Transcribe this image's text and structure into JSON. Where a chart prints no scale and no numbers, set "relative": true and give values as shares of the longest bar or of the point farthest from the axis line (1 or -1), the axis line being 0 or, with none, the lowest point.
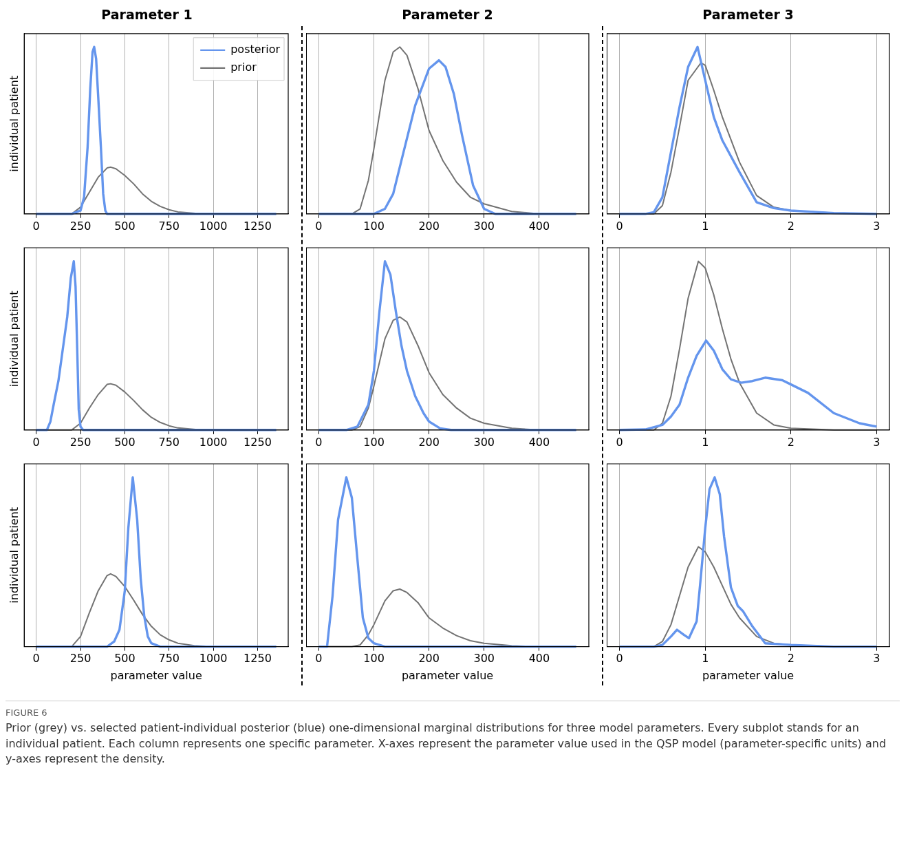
{
  "chart_data": [
    {
      "type": "line",
      "title": "Parameter 1",
      "ylabel": "individual patient",
      "relative": true,
      "xlim": [
        -68,
        1423
      ],
      "xticks": [
        0,
        250,
        500,
        750,
        1000,
        1250
      ],
      "grid": "x",
      "legend": "top right",
      "series": [
        {
          "name": "posterior",
          "color": "#6495ed",
          "x": [
            0,
            200,
            250,
            270,
            290,
            305,
            318,
            327,
            338,
            350,
            365,
            378,
            390,
            400,
            1355
          ],
          "values": [
            0,
            0,
            0.02,
            0.1,
            0.4,
            0.75,
            0.97,
            1,
            0.93,
            0.7,
            0.4,
            0.12,
            0.02,
            0,
            0
          ]
        },
        {
          "name": "prior",
          "color": "#737373",
          "x": [
            0,
            200,
            250,
            300,
            350,
            400,
            420,
            450,
            500,
            550,
            600,
            650,
            700,
            750,
            800,
            900,
            1000,
            1355
          ],
          "values": [
            0,
            0,
            0.04,
            0.13,
            0.22,
            0.275,
            0.28,
            0.27,
            0.23,
            0.18,
            0.12,
            0.075,
            0.045,
            0.025,
            0.012,
            0.003,
            0,
            0
          ]
        }
      ]
    },
    {
      "type": "line",
      "title": "Parameter 2",
      "relative": true,
      "xlim": [
        -23,
        490
      ],
      "xticks": [
        0,
        100,
        200,
        300,
        400
      ],
      "grid": "x",
      "series": [
        {
          "color": "#6495ed",
          "x": [
            0,
            100,
            120,
            135,
            150,
            175,
            200,
            218,
            230,
            245,
            260,
            280,
            300,
            320,
            467
          ],
          "values": [
            0,
            0,
            0.03,
            0.12,
            0.32,
            0.65,
            0.87,
            0.92,
            0.88,
            0.72,
            0.47,
            0.17,
            0.03,
            0,
            0
          ]
        },
        {
          "color": "#737373",
          "x": [
            0,
            60,
            75,
            90,
            100,
            120,
            135,
            147,
            160,
            180,
            200,
            225,
            250,
            275,
            300,
            350,
            400,
            467
          ],
          "values": [
            0,
            0,
            0.03,
            0.2,
            0.39,
            0.8,
            0.97,
            1,
            0.95,
            0.75,
            0.5,
            0.32,
            0.19,
            0.1,
            0.06,
            0.015,
            0,
            0
          ]
        }
      ]
    },
    {
      "type": "line",
      "title": "Parameter 3",
      "relative": true,
      "xlim": [
        -0.15,
        3.15
      ],
      "xticks": [
        0,
        1,
        2,
        3
      ],
      "grid": "x",
      "series": [
        {
          "color": "#6495ed",
          "x": [
            0,
            0.3,
            0.4,
            0.5,
            0.6,
            0.7,
            0.8,
            0.91,
            1.0,
            1.1,
            1.2,
            1.4,
            1.6,
            1.8,
            2.0,
            2.5,
            3.0
          ],
          "values": [
            0,
            0,
            0.01,
            0.1,
            0.37,
            0.64,
            0.88,
            1,
            0.8,
            0.58,
            0.44,
            0.25,
            0.07,
            0.035,
            0.02,
            0.005,
            0
          ]
        },
        {
          "color": "#737373",
          "x": [
            0,
            0.4,
            0.5,
            0.6,
            0.7,
            0.8,
            0.95,
            1.0,
            1.1,
            1.2,
            1.4,
            1.6,
            1.8,
            2.0,
            2.5,
            3.0
          ],
          "values": [
            0,
            0,
            0.05,
            0.25,
            0.52,
            0.8,
            0.905,
            0.89,
            0.74,
            0.58,
            0.31,
            0.11,
            0.04,
            0.02,
            0.005,
            0
          ]
        }
      ]
    },
    {
      "type": "line",
      "ylabel": "individual patient",
      "relative": true,
      "xlim": [
        -68,
        1423
      ],
      "xticks": [
        0,
        250,
        500,
        750,
        1000,
        1250
      ],
      "grid": "x",
      "series": [
        {
          "color": "#6495ed",
          "x": [
            0,
            60,
            80,
            100,
            125,
            150,
            175,
            195,
            212,
            222,
            232,
            240,
            250,
            265,
            1355
          ],
          "values": [
            0,
            0,
            0.05,
            0.16,
            0.29,
            0.48,
            0.67,
            0.9,
            1,
            0.85,
            0.45,
            0.12,
            0.02,
            0,
            0
          ]
        },
        {
          "color": "#737373",
          "x": [
            0,
            200,
            250,
            300,
            350,
            400,
            420,
            450,
            500,
            550,
            600,
            650,
            700,
            750,
            800,
            900,
            1000,
            1355
          ],
          "values": [
            0,
            0,
            0.04,
            0.13,
            0.21,
            0.27,
            0.274,
            0.265,
            0.225,
            0.175,
            0.12,
            0.075,
            0.045,
            0.025,
            0.012,
            0.003,
            0,
            0
          ]
        }
      ]
    },
    {
      "type": "line",
      "relative": true,
      "xlim": [
        -23,
        490
      ],
      "xticks": [
        0,
        100,
        200,
        300,
        400
      ],
      "grid": "x",
      "series": [
        {
          "color": "#6495ed",
          "x": [
            0,
            50,
            70,
            90,
            100,
            110,
            120,
            130,
            140,
            150,
            160,
            175,
            190,
            200,
            220,
            240,
            467
          ],
          "values": [
            0,
            0,
            0.02,
            0.15,
            0.35,
            0.7,
            1,
            0.92,
            0.7,
            0.5,
            0.35,
            0.2,
            0.1,
            0.05,
            0.01,
            0,
            0
          ]
        },
        {
          "color": "#737373",
          "x": [
            0,
            60,
            75,
            90,
            100,
            120,
            135,
            147,
            160,
            180,
            200,
            225,
            250,
            275,
            300,
            350,
            400,
            467
          ],
          "values": [
            0,
            0,
            0.02,
            0.13,
            0.26,
            0.54,
            0.65,
            0.67,
            0.64,
            0.5,
            0.34,
            0.21,
            0.13,
            0.07,
            0.04,
            0.01,
            0,
            0
          ]
        }
      ]
    },
    {
      "type": "line",
      "relative": true,
      "xlim": [
        -0.15,
        3.15
      ],
      "xticks": [
        0,
        1,
        2,
        3
      ],
      "grid": "x",
      "series": [
        {
          "color": "#6495ed",
          "x": [
            0,
            0.3,
            0.5,
            0.6,
            0.7,
            0.8,
            0.9,
            1.01,
            1.1,
            1.2,
            1.3,
            1.42,
            1.55,
            1.7,
            1.9,
            2.0,
            2.2,
            2.5,
            2.8,
            3.0
          ],
          "values": [
            0,
            0.003,
            0.03,
            0.08,
            0.15,
            0.31,
            0.44,
            0.53,
            0.47,
            0.36,
            0.3,
            0.28,
            0.29,
            0.31,
            0.295,
            0.27,
            0.22,
            0.1,
            0.04,
            0.02
          ]
        },
        {
          "color": "#737373",
          "x": [
            0,
            0.4,
            0.5,
            0.6,
            0.7,
            0.8,
            0.92,
            1.0,
            1.1,
            1.2,
            1.3,
            1.4,
            1.6,
            1.8,
            2.0,
            2.5,
            3.0
          ],
          "values": [
            0,
            0,
            0.04,
            0.2,
            0.48,
            0.78,
            1,
            0.96,
            0.8,
            0.6,
            0.42,
            0.28,
            0.1,
            0.03,
            0.01,
            0,
            0
          ]
        }
      ]
    },
    {
      "type": "line",
      "ylabel": "individual patient",
      "xlabel": "parameter value",
      "relative": true,
      "xlim": [
        -68,
        1423
      ],
      "xticks": [
        0,
        250,
        500,
        750,
        1000,
        1250
      ],
      "grid": "x",
      "series": [
        {
          "color": "#6495ed",
          "x": [
            0,
            400,
            440,
            470,
            500,
            520,
            545,
            570,
            590,
            610,
            630,
            650,
            700,
            1355
          ],
          "values": [
            0,
            0,
            0.03,
            0.1,
            0.33,
            0.7,
            1,
            0.75,
            0.4,
            0.18,
            0.06,
            0.02,
            0,
            0
          ]
        },
        {
          "color": "#737373",
          "x": [
            0,
            200,
            250,
            300,
            350,
            400,
            420,
            450,
            500,
            550,
            600,
            650,
            700,
            750,
            800,
            900,
            1000,
            1355
          ],
          "values": [
            0,
            0,
            0.06,
            0.2,
            0.33,
            0.42,
            0.43,
            0.415,
            0.355,
            0.275,
            0.19,
            0.12,
            0.07,
            0.04,
            0.02,
            0.005,
            0,
            0
          ]
        }
      ]
    },
    {
      "type": "line",
      "xlabel": "parameter value",
      "relative": true,
      "xlim": [
        -23,
        490
      ],
      "xticks": [
        0,
        100,
        200,
        300,
        400
      ],
      "grid": "x",
      "series": [
        {
          "color": "#6495ed",
          "x": [
            0,
            15,
            25,
            35,
            50,
            60,
            70,
            80,
            90,
            100,
            120,
            467
          ],
          "values": [
            0,
            0,
            0.3,
            0.75,
            1,
            0.88,
            0.52,
            0.17,
            0.05,
            0.02,
            0,
            0
          ]
        },
        {
          "color": "#737373",
          "x": [
            0,
            60,
            75,
            90,
            100,
            120,
            135,
            147,
            160,
            180,
            200,
            225,
            250,
            275,
            300,
            350,
            400,
            467
          ],
          "values": [
            0,
            0,
            0.01,
            0.07,
            0.13,
            0.27,
            0.33,
            0.34,
            0.32,
            0.26,
            0.17,
            0.11,
            0.065,
            0.035,
            0.02,
            0.005,
            0,
            0
          ]
        }
      ]
    },
    {
      "type": "line",
      "xlabel": "parameter value",
      "relative": true,
      "xlim": [
        -0.15,
        3.15
      ],
      "xticks": [
        0,
        1,
        2,
        3
      ],
      "grid": "x",
      "annotations": [
        "FIGURE 6",
        "Prior (grey) vs. selected patient-individual posterior (blue) one-dimensional marginal distributions for three model parameters. Every subplot stands for an individual patient. Each column represents one specific parameter. X-axes represent the parameter value used in the QSP model (parameter-specific units) and y-axes represent the density."
      ],
      "series": [
        {
          "color": "#6495ed",
          "x": [
            0,
            0.4,
            0.5,
            0.6,
            0.67,
            0.75,
            0.81,
            0.9,
            0.95,
            1.0,
            1.05,
            1.11,
            1.17,
            1.22,
            1.3,
            1.38,
            1.44,
            1.55,
            1.7,
            2.0,
            2.5,
            3.0
          ],
          "values": [
            0,
            0,
            0.01,
            0.06,
            0.1,
            0.07,
            0.05,
            0.15,
            0.42,
            0.7,
            0.93,
            1,
            0.9,
            0.65,
            0.35,
            0.24,
            0.21,
            0.12,
            0.02,
            0.01,
            0,
            0
          ]
        },
        {
          "color": "#737373",
          "x": [
            0,
            0.4,
            0.5,
            0.6,
            0.7,
            0.8,
            0.92,
            1.0,
            1.1,
            1.2,
            1.3,
            1.4,
            1.6,
            1.8,
            2.0,
            2.5,
            3.0
          ],
          "values": [
            0,
            0,
            0.03,
            0.13,
            0.3,
            0.47,
            0.59,
            0.56,
            0.47,
            0.36,
            0.25,
            0.17,
            0.06,
            0.02,
            0.01,
            0,
            0
          ]
        }
      ]
    }
  ]
}
